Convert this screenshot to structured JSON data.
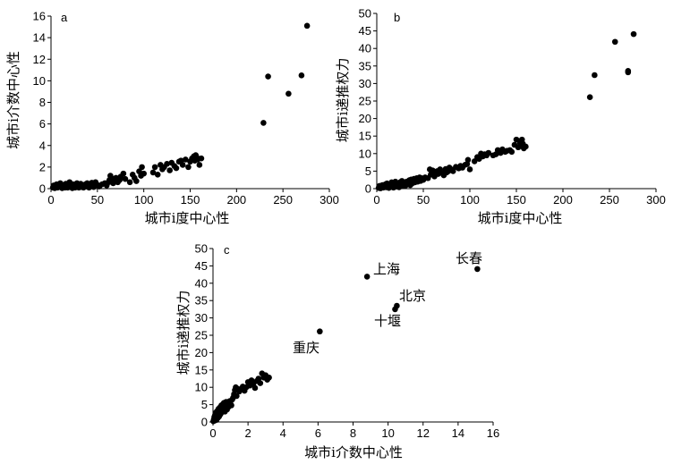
{
  "chart_data": [
    {
      "panel_label": "a",
      "type": "scatter",
      "xlabel": "城市i度中心性",
      "ylabel": "城市i介数中心性",
      "xlim": [
        0,
        300
      ],
      "ylim": [
        0,
        16
      ],
      "xticks": [
        0,
        50,
        100,
        150,
        200,
        250,
        300
      ],
      "yticks": [
        0,
        2,
        4,
        6,
        8,
        10,
        12,
        14,
        16
      ],
      "grid": false,
      "points": [
        [
          2,
          0.1
        ],
        [
          3,
          0.3
        ],
        [
          4,
          0.05
        ],
        [
          5,
          0.2
        ],
        [
          6,
          0.4
        ],
        [
          7,
          0.1
        ],
        [
          8,
          0.3
        ],
        [
          9,
          0.15
        ],
        [
          10,
          0.5
        ],
        [
          11,
          0.2
        ],
        [
          12,
          0.05
        ],
        [
          13,
          0.35
        ],
        [
          14,
          0.2
        ],
        [
          15,
          0.1
        ],
        [
          16,
          0.45
        ],
        [
          17,
          0.25
        ],
        [
          18,
          0.1
        ],
        [
          19,
          0.3
        ],
        [
          20,
          0.6
        ],
        [
          21,
          0.15
        ],
        [
          22,
          0.3
        ],
        [
          23,
          0.05
        ],
        [
          24,
          0.4
        ],
        [
          25,
          0.2
        ],
        [
          26,
          0.1
        ],
        [
          27,
          0.35
        ],
        [
          28,
          0.5
        ],
        [
          29,
          0.2
        ],
        [
          30,
          0.1
        ],
        [
          31,
          0.3
        ],
        [
          32,
          0.45
        ],
        [
          33,
          0.15
        ],
        [
          34,
          0.3
        ],
        [
          35,
          0.1
        ],
        [
          36,
          0.25
        ],
        [
          37,
          0.4
        ],
        [
          38,
          0.2
        ],
        [
          39,
          0.5
        ],
        [
          40,
          0.3
        ],
        [
          41,
          0.1
        ],
        [
          42,
          0.35
        ],
        [
          43,
          0.2
        ],
        [
          44,
          0.55
        ],
        [
          45,
          0.3
        ],
        [
          46,
          0.15
        ],
        [
          47,
          0.4
        ],
        [
          48,
          0.6
        ],
        [
          50,
          0.35
        ],
        [
          52,
          0.2
        ],
        [
          55,
          0.4
        ],
        [
          58,
          0.5
        ],
        [
          60,
          0.3
        ],
        [
          62,
          0.6
        ],
        [
          63,
          0.8
        ],
        [
          64,
          1.2
        ],
        [
          65,
          0.7
        ],
        [
          67,
          0.5
        ],
        [
          68,
          0.9
        ],
        [
          70,
          1.0
        ],
        [
          72,
          0.6
        ],
        [
          74,
          0.8
        ],
        [
          75,
          1.1
        ],
        [
          78,
          1.4
        ],
        [
          80,
          0.9
        ],
        [
          85,
          0.6
        ],
        [
          88,
          1.3
        ],
        [
          90,
          1.0
        ],
        [
          92,
          0.7
        ],
        [
          95,
          1.6
        ],
        [
          97,
          1.2
        ],
        [
          98,
          2.0
        ],
        [
          100,
          1.4
        ],
        [
          110,
          1.5
        ],
        [
          112,
          2.0
        ],
        [
          115,
          1.3
        ],
        [
          118,
          2.2
        ],
        [
          120,
          1.8
        ],
        [
          122,
          2.0
        ],
        [
          125,
          2.3
        ],
        [
          128,
          1.7
        ],
        [
          130,
          2.4
        ],
        [
          133,
          2.1
        ],
        [
          135,
          1.9
        ],
        [
          138,
          2.5
        ],
        [
          140,
          2.6
        ],
        [
          142,
          2.2
        ],
        [
          145,
          2.7
        ],
        [
          148,
          2.0
        ],
        [
          150,
          2.5
        ],
        [
          152,
          2.8
        ],
        [
          154,
          3.0
        ],
        [
          155,
          2.6
        ],
        [
          156,
          3.1
        ],
        [
          157,
          2.9
        ],
        [
          158,
          2.7
        ],
        [
          160,
          2.2
        ],
        [
          162,
          2.8
        ],
        [
          229,
          6.1
        ],
        [
          234,
          10.4
        ],
        [
          256,
          8.8
        ],
        [
          270,
          10.5
        ],
        [
          276,
          15.1
        ]
      ]
    },
    {
      "panel_label": "b",
      "type": "scatter",
      "xlabel": "城市i度中心性",
      "ylabel": "城市i递推权力",
      "xlim": [
        0,
        300
      ],
      "ylim": [
        0,
        50
      ],
      "xticks": [
        0,
        50,
        100,
        150,
        200,
        250,
        300
      ],
      "yticks": [
        0,
        5,
        10,
        15,
        20,
        25,
        30,
        35,
        40,
        45,
        50
      ],
      "grid": false,
      "points": [
        [
          2,
          0.2
        ],
        [
          3,
          0.8
        ],
        [
          4,
          0.1
        ],
        [
          5,
          0.5
        ],
        [
          6,
          1.0
        ],
        [
          7,
          0.3
        ],
        [
          8,
          0.7
        ],
        [
          9,
          1.2
        ],
        [
          10,
          0.4
        ],
        [
          11,
          1.5
        ],
        [
          12,
          0.6
        ],
        [
          13,
          0.2
        ],
        [
          14,
          1.0
        ],
        [
          15,
          0.5
        ],
        [
          16,
          1.8
        ],
        [
          17,
          0.8
        ],
        [
          18,
          0.3
        ],
        [
          19,
          1.2
        ],
        [
          20,
          2.0
        ],
        [
          21,
          0.6
        ],
        [
          22,
          1.0
        ],
        [
          23,
          1.5
        ],
        [
          24,
          0.4
        ],
        [
          25,
          1.8
        ],
        [
          26,
          1.0
        ],
        [
          27,
          2.2
        ],
        [
          28,
          0.8
        ],
        [
          29,
          1.3
        ],
        [
          30,
          1.6
        ],
        [
          31,
          0.9
        ],
        [
          32,
          2.0
        ],
        [
          33,
          1.2
        ],
        [
          34,
          1.8
        ],
        [
          35,
          2.4
        ],
        [
          36,
          1.0
        ],
        [
          37,
          2.6
        ],
        [
          38,
          1.5
        ],
        [
          39,
          2.0
        ],
        [
          40,
          2.8
        ],
        [
          41,
          1.8
        ],
        [
          42,
          2.3
        ],
        [
          43,
          3.0
        ],
        [
          44,
          2.0
        ],
        [
          45,
          2.6
        ],
        [
          46,
          3.2
        ],
        [
          47,
          2.2
        ],
        [
          48,
          3.0
        ],
        [
          50,
          2.5
        ],
        [
          52,
          3.2
        ],
        [
          55,
          3.0
        ],
        [
          57,
          5.5
        ],
        [
          58,
          4.0
        ],
        [
          60,
          5.2
        ],
        [
          62,
          3.5
        ],
        [
          63,
          4.8
        ],
        [
          65,
          5.0
        ],
        [
          66,
          4.2
        ],
        [
          68,
          5.5
        ],
        [
          70,
          4.5
        ],
        [
          72,
          3.8
        ],
        [
          74,
          5.6
        ],
        [
          75,
          4.6
        ],
        [
          77,
          5.0
        ],
        [
          78,
          6.0
        ],
        [
          80,
          5.5
        ],
        [
          82,
          5.0
        ],
        [
          85,
          6.2
        ],
        [
          88,
          5.8
        ],
        [
          90,
          6.5
        ],
        [
          92,
          6.0
        ],
        [
          95,
          6.8
        ],
        [
          97,
          7.0
        ],
        [
          98,
          8.2
        ],
        [
          100,
          5.5
        ],
        [
          105,
          7.8
        ],
        [
          108,
          9.0
        ],
        [
          110,
          8.5
        ],
        [
          112,
          10.0
        ],
        [
          114,
          9.2
        ],
        [
          116,
          9.8
        ],
        [
          118,
          9.5
        ],
        [
          120,
          10.2
        ],
        [
          125,
          9.5
        ],
        [
          128,
          9.8
        ],
        [
          130,
          11.0
        ],
        [
          133,
          10.2
        ],
        [
          135,
          11.2
        ],
        [
          138,
          10.5
        ],
        [
          140,
          10.8
        ],
        [
          143,
          11.0
        ],
        [
          145,
          10.5
        ],
        [
          148,
          12.5
        ],
        [
          150,
          14.0
        ],
        [
          152,
          11.8
        ],
        [
          154,
          13.0
        ],
        [
          155,
          12.2
        ],
        [
          156,
          14.0
        ],
        [
          157,
          12.8
        ],
        [
          158,
          11.5
        ],
        [
          160,
          12.0
        ],
        [
          229,
          26.1
        ],
        [
          234,
          32.4
        ],
        [
          256,
          41.9
        ],
        [
          270,
          33.6
        ],
        [
          270,
          33.2
        ],
        [
          276,
          44.1
        ]
      ]
    },
    {
      "panel_label": "c",
      "type": "scatter",
      "xlabel": "城市i介数中心性",
      "ylabel": "城市i递推权力",
      "xlim": [
        0,
        16
      ],
      "ylim": [
        0,
        50
      ],
      "xticks": [
        0,
        2,
        4,
        6,
        8,
        10,
        12,
        14,
        16
      ],
      "yticks": [
        0,
        5,
        10,
        15,
        20,
        25,
        30,
        35,
        40,
        45,
        50
      ],
      "grid": false,
      "points": [
        [
          0.02,
          0.2
        ],
        [
          0.05,
          0.8
        ],
        [
          0.08,
          1.5
        ],
        [
          0.1,
          0.4
        ],
        [
          0.12,
          2.0
        ],
        [
          0.15,
          1.0
        ],
        [
          0.18,
          2.8
        ],
        [
          0.2,
          0.6
        ],
        [
          0.22,
          1.8
        ],
        [
          0.25,
          3.2
        ],
        [
          0.28,
          1.2
        ],
        [
          0.3,
          2.5
        ],
        [
          0.32,
          3.8
        ],
        [
          0.35,
          1.6
        ],
        [
          0.38,
          3.0
        ],
        [
          0.4,
          4.2
        ],
        [
          0.42,
          2.2
        ],
        [
          0.45,
          3.5
        ],
        [
          0.48,
          4.8
        ],
        [
          0.5,
          2.8
        ],
        [
          0.52,
          4.0
        ],
        [
          0.55,
          5.0
        ],
        [
          0.58,
          3.4
        ],
        [
          0.6,
          4.6
        ],
        [
          0.62,
          5.5
        ],
        [
          0.65,
          4.2
        ],
        [
          0.68,
          3.0
        ],
        [
          0.7,
          5.2
        ],
        [
          0.72,
          4.0
        ],
        [
          0.75,
          5.8
        ],
        [
          0.78,
          4.6
        ],
        [
          0.8,
          3.6
        ],
        [
          0.85,
          5.4
        ],
        [
          0.9,
          4.4
        ],
        [
          0.95,
          6.0
        ],
        [
          1.0,
          5.2
        ],
        [
          1.05,
          4.8
        ],
        [
          1.1,
          6.5
        ],
        [
          1.15,
          7.0
        ],
        [
          1.2,
          8.0
        ],
        [
          1.25,
          9.2
        ],
        [
          1.3,
          10.0
        ],
        [
          1.35,
          7.5
        ],
        [
          1.4,
          9.6
        ],
        [
          1.5,
          8.8
        ],
        [
          1.6,
          9.5
        ],
        [
          1.7,
          10.2
        ],
        [
          1.8,
          9.0
        ],
        [
          1.9,
          10.0
        ],
        [
          2.0,
          11.5
        ],
        [
          2.1,
          10.5
        ],
        [
          2.2,
          12.0
        ],
        [
          2.3,
          11.0
        ],
        [
          2.4,
          9.8
        ],
        [
          2.5,
          11.8
        ],
        [
          2.6,
          12.5
        ],
        [
          2.7,
          11.2
        ],
        [
          2.8,
          14.0
        ],
        [
          2.9,
          12.8
        ],
        [
          3.0,
          13.5
        ],
        [
          3.1,
          12.2
        ],
        [
          3.2,
          12.8
        ],
        [
          6.1,
          26.1
        ],
        [
          8.8,
          41.9
        ],
        [
          10.4,
          32.5
        ],
        [
          10.5,
          33.5
        ],
        [
          15.1,
          44.1
        ]
      ],
      "annotations": [
        {
          "text": "长春"
        },
        {
          "text": "上海"
        },
        {
          "text": "北京"
        },
        {
          "text": "十堰"
        },
        {
          "text": "重庆"
        }
      ]
    }
  ]
}
